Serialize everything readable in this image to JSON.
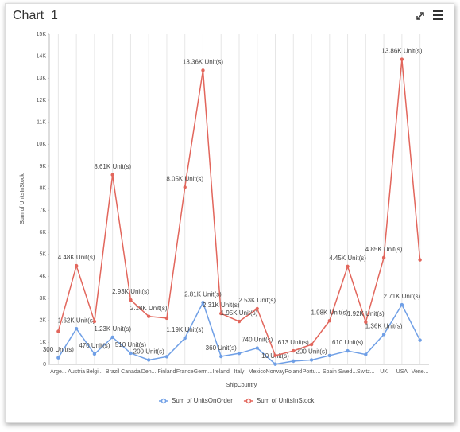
{
  "chart_data": {
    "type": "line",
    "title": "Chart_1",
    "x_label": "ShipCountry",
    "y_label": "Sum of UnitsInStock",
    "categories": [
      "Arge...",
      "Austria",
      "Belgi...",
      "Brazil",
      "Canada",
      "Den...",
      "Finland",
      "France",
      "Germ...",
      "Ireland",
      "Italy",
      "Mexico",
      "Norway",
      "Poland",
      "Portu...",
      "Spain",
      "Swed...",
      "Switz...",
      "UK",
      "USA",
      "Vene..."
    ],
    "series": [
      {
        "name": "Sum of UnitsOnOrder",
        "color": "#6f9fe6",
        "values": [
          300,
          1620,
          470,
          1230,
          510,
          200,
          350,
          1190,
          2810,
          360,
          500,
          740,
          10,
          150,
          200,
          400,
          610,
          450,
          1360,
          2710,
          1100
        ],
        "value_labels": [
          "300 Unit(s)",
          "1.62K Unit(s)",
          "470 Unit(s)",
          "1.23K Unit(s)",
          "510 Unit(s)",
          "200 Unit(s)",
          null,
          "1.19K Unit(s)",
          "2.81K Unit(s)",
          "360 Unit(s)",
          null,
          "740 Unit(s)",
          "10 Unit(s)",
          null,
          "200 Unit(s)",
          null,
          "610 Unit(s)",
          null,
          "1.36K Unit(s)",
          "2.71K Unit(s)",
          null
        ]
      },
      {
        "name": "Sum of UnitsInStock",
        "color": "#e2665c",
        "values": [
          1500,
          4480,
          1950,
          8610,
          2930,
          2180,
          2100,
          8050,
          13360,
          2310,
          1950,
          2530,
          400,
          613,
          900,
          1980,
          4450,
          1920,
          4850,
          13860,
          4750
        ],
        "value_labels": [
          null,
          "4.48K Unit(s)",
          null,
          "8.61K Unit(s)",
          "2.93K Unit(s)",
          "2.18K Unit(s)",
          null,
          "8.05K Unit(s)",
          "13.36K Unit(s)",
          "2.31K Unit(s)",
          "1.95K Unit(s)",
          "2.53K Unit(s)",
          null,
          "613 Unit(s)",
          null,
          "1.98K Unit(s)",
          "4.45K Unit(s)",
          "1.92K Unit(s)",
          "4.85K Unit(s)",
          "13.86K Unit(s)",
          null
        ]
      }
    ],
    "ylim": [
      0,
      15000
    ],
    "yticks": [
      0,
      {
        "value": 1000,
        "label": "1K"
      },
      {
        "value": 2000,
        "label": "2K"
      },
      {
        "value": 3000,
        "label": "3K"
      },
      {
        "value": 4000,
        "label": "4K"
      },
      {
        "value": 5000,
        "label": "5K"
      },
      {
        "value": 6000,
        "label": "6K"
      },
      {
        "value": 7000,
        "label": "7K"
      },
      {
        "value": 8000,
        "label": "8K"
      },
      {
        "value": 9000,
        "label": "9K"
      },
      {
        "value": 10000,
        "label": "10K"
      },
      {
        "value": 11000,
        "label": "11K"
      },
      {
        "value": 12000,
        "label": "12K"
      },
      {
        "value": 13000,
        "label": "13K"
      },
      {
        "value": 14000,
        "label": "14K"
      },
      {
        "value": 15000,
        "label": "15K"
      }
    ],
    "grid": "vertical",
    "legend": "bottom"
  }
}
